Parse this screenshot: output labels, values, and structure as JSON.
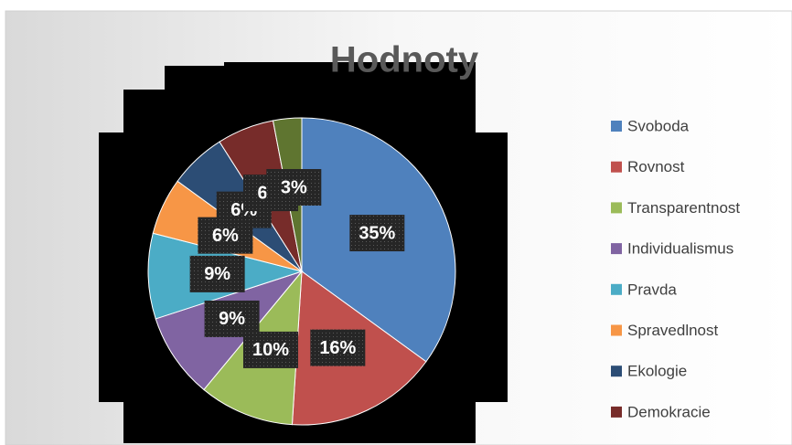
{
  "chart_data": {
    "type": "pie",
    "title": "Hodnoty",
    "categories": [
      "Svoboda",
      "Rovnost",
      "Transparentnost",
      "Individualismus",
      "Pravda",
      "Spravedlnost",
      "Ekologie",
      "Demokracie",
      null
    ],
    "values": [
      35,
      16,
      10,
      9,
      9,
      6,
      6,
      6,
      3
    ],
    "value_labels": [
      "35%",
      "16%",
      "10%",
      "9%",
      "9%",
      "6%",
      "6%",
      "6%",
      "3%"
    ],
    "colors": [
      "#4f81bd",
      "#c0504d",
      "#9bbb59",
      "#8064a2",
      "#4bacc6",
      "#f79646",
      "#2c4d75",
      "#772c2a",
      "#5f7530"
    ],
    "legend": "right"
  }
}
